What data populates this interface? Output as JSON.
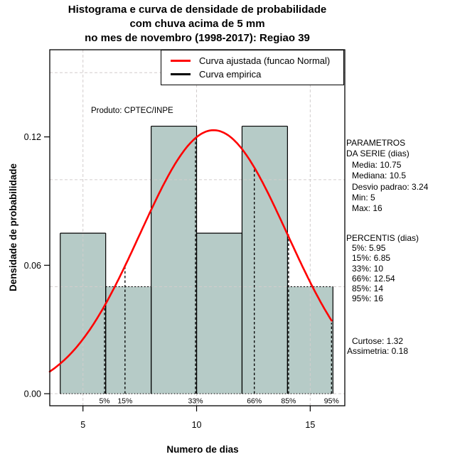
{
  "title": {
    "line1": "Histograma e curva de densidade de probabilidade",
    "line2": "com chuva acima de 5 mm",
    "line3": "no mes de novembro (1998-2017): Regiao 39"
  },
  "watermark": "Produto: CPTEC/INPE",
  "legend": {
    "items": [
      {
        "label": "Curva ajustada (funcao Normal)",
        "color": "#ff0000"
      },
      {
        "label": "Curva empirica",
        "color": "#000000"
      }
    ]
  },
  "axes": {
    "xlabel": "Numero de dias",
    "ylabel": "Densidade de probabilidade"
  },
  "stats": {
    "header_line1": "PARAMETROS",
    "header_line2": "DA SERIE (dias)",
    "params": [
      "Media: 10.75",
      "Mediana: 10.5",
      "Desvio padrao: 3.24",
      "Min: 5",
      "Max: 16"
    ],
    "percentis_header": "PERCENTIS (dias)",
    "percentis": [
      "5%: 5.95",
      "15%: 6.85",
      "33%: 10",
      "66%: 12.54",
      "85%: 14",
      "95%: 16"
    ],
    "moments": [
      "Curtose: 1.32",
      "Assimetria: 0.18"
    ]
  },
  "chart_data": {
    "type": "histogram+density",
    "title": "Histograma e curva de densidade de probabilidade com chuva acima de 5 mm no mes de novembro (1998-2017): Regiao 39",
    "xlabel": "Numero de dias",
    "ylabel": "Densidade de probabilidade",
    "bins": {
      "breaks": [
        4,
        6,
        8,
        10,
        12,
        14,
        16
      ],
      "densities": [
        0.075,
        0.05,
        0.125,
        0.075,
        0.125,
        0.05
      ],
      "counts": [
        3,
        2,
        5,
        3,
        5,
        2
      ]
    },
    "normal_fit": {
      "mean": 10.75,
      "sd": 3.24,
      "curve_x_max": 16
    },
    "percentiles": [
      {
        "label": "5%",
        "value": 5.95
      },
      {
        "label": "15%",
        "value": 6.85
      },
      {
        "label": "33%",
        "value": 10
      },
      {
        "label": "66%",
        "value": 12.54
      },
      {
        "label": "85%",
        "value": 14
      },
      {
        "label": "95%",
        "value": 16
      }
    ],
    "series_stats": {
      "media": 10.75,
      "mediana": 10.5,
      "desvio_padrao": 3.24,
      "min": 5,
      "max": 16,
      "curtose": 1.32,
      "assimetria": 0.18
    },
    "xlim": [
      3.539,
      16.522
    ],
    "ylim": [
      -0.00564,
      0.16072
    ],
    "x_ticks": [
      {
        "v": 5,
        "label": "5"
      },
      {
        "v": 10,
        "label": "10"
      },
      {
        "v": 15,
        "label": "15"
      }
    ],
    "y_ticks": [
      {
        "v": 0,
        "label": "0.00"
      },
      {
        "v": 0.06,
        "label": "0.06"
      },
      {
        "v": 0.12,
        "label": "0.12"
      }
    ],
    "gridlines": {
      "x": [
        5,
        10,
        15
      ],
      "y": [
        0,
        0.05,
        0.1,
        0.15
      ]
    },
    "dotted_top_level": 0.05,
    "colors": {
      "bar_fill": "#b6cbc7",
      "bar_border": "#000000",
      "grid": "#d2cccc",
      "curve": "#ff0000",
      "percentile_line": "#000000"
    }
  }
}
